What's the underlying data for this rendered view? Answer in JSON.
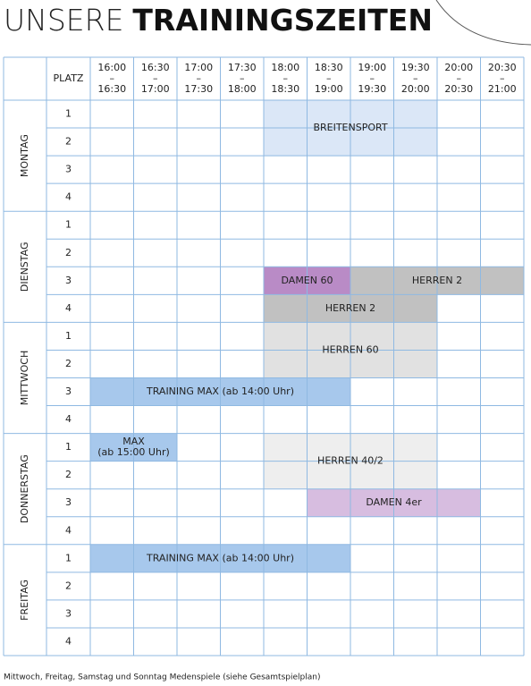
{
  "header": {
    "title_light": "UNSERE",
    "title_bold": "TRAININGSZEITEN"
  },
  "table": {
    "platz_label": "PLATZ",
    "time_separator": "–",
    "time_slots": [
      {
        "start": "16:00",
        "end": "16:30"
      },
      {
        "start": "16:30",
        "end": "17:00"
      },
      {
        "start": "17:00",
        "end": "17:30"
      },
      {
        "start": "17:30",
        "end": "18:00"
      },
      {
        "start": "18:00",
        "end": "18:30"
      },
      {
        "start": "18:30",
        "end": "19:00"
      },
      {
        "start": "19:00",
        "end": "19:30"
      },
      {
        "start": "19:30",
        "end": "20:00"
      },
      {
        "start": "20:00",
        "end": "20:30"
      },
      {
        "start": "20:30",
        "end": "21:00"
      }
    ],
    "days": [
      {
        "name": "MONTAG",
        "courts": [
          "1",
          "2",
          "3",
          "4"
        ],
        "bookings": [
          {
            "label": [
              "BREITENSPORT"
            ],
            "courts": [
              "1",
              "2"
            ],
            "start": "18:00",
            "end": "20:00",
            "color": "#dbe7f7"
          }
        ]
      },
      {
        "name": "DIENSTAG",
        "courts": [
          "1",
          "2",
          "3",
          "4"
        ],
        "bookings": [
          {
            "label": [
              "DAMEN 60"
            ],
            "courts": [
              "3"
            ],
            "start": "18:00",
            "end": "19:00",
            "color": "#b98bc6"
          },
          {
            "label": [
              "HERREN 2"
            ],
            "courts": [
              "3"
            ],
            "start": "19:00",
            "end": "21:00",
            "color": "#c1c1c1"
          },
          {
            "label": [
              "HERREN 2"
            ],
            "courts": [
              "4"
            ],
            "start": "18:00",
            "end": "20:00",
            "color": "#c1c1c1"
          }
        ]
      },
      {
        "name": "MITTWOCH",
        "courts": [
          "1",
          "2",
          "3",
          "4"
        ],
        "bookings": [
          {
            "label": [
              "HERREN 60"
            ],
            "courts": [
              "1",
              "2"
            ],
            "start": "18:00",
            "end": "20:00",
            "color": "#e1e1e1"
          },
          {
            "label": [
              "TRAINING MAX (ab 14:00 Uhr)"
            ],
            "courts": [
              "3"
            ],
            "start": "16:00",
            "end": "19:00",
            "color": "#a7c8ec"
          }
        ]
      },
      {
        "name": "DONNERSTAG",
        "courts": [
          "1",
          "2",
          "3",
          "4"
        ],
        "bookings": [
          {
            "label": [
              "MAX",
              "(ab 15:00 Uhr)"
            ],
            "courts": [
              "1"
            ],
            "start": "16:00",
            "end": "17:00",
            "color": "#a7c8ec"
          },
          {
            "label": [
              "HERREN 40/2"
            ],
            "courts": [
              "1",
              "2"
            ],
            "start": "18:00",
            "end": "20:00",
            "color": "#eeeeee"
          },
          {
            "label": [
              "DAMEN 4er"
            ],
            "courts": [
              "3"
            ],
            "start": "18:30",
            "end": "20:30",
            "color": "#d7bde0"
          }
        ]
      },
      {
        "name": "FREITAG",
        "courts": [
          "1",
          "2",
          "3",
          "4"
        ],
        "bookings": [
          {
            "label": [
              "TRAINING MAX (ab 14:00 Uhr)"
            ],
            "courts": [
              "1"
            ],
            "start": "16:00",
            "end": "19:00",
            "color": "#a7c8ec"
          }
        ]
      }
    ]
  },
  "footer": "Mittwoch, Freitag, Samstag und Sonntag Medenspiele (siehe Gesamtspielplan)"
}
